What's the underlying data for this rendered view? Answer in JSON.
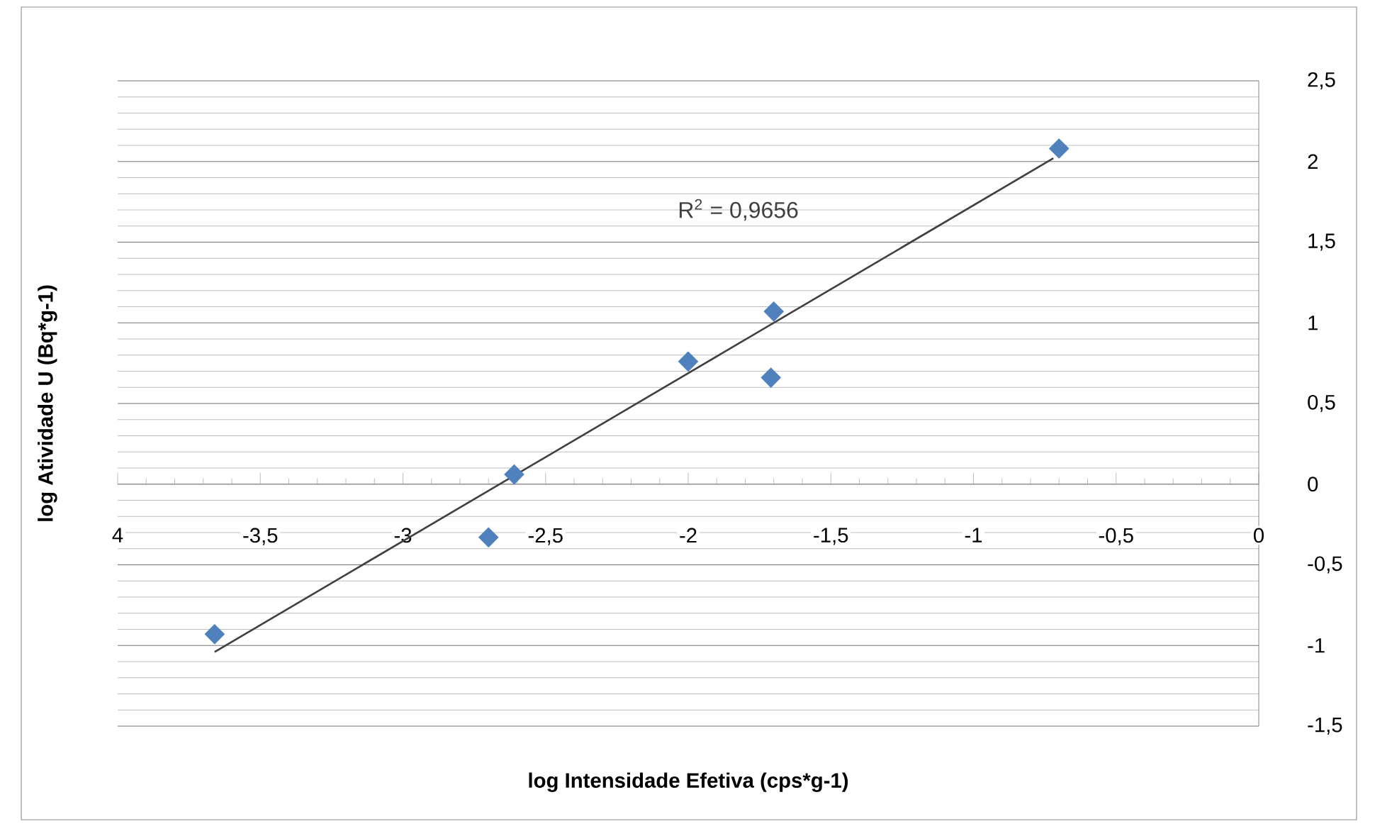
{
  "chart_data": {
    "type": "scatter",
    "xlabel": "log Intensidade Efetiva (cps*g-1)",
    "ylabel": "log Atividade U (Bq*g-1)",
    "series": [
      {
        "color": "#4f81bd",
        "x": [
          -3.66,
          -2.7,
          -2.61,
          -2.0,
          -1.71,
          -1.7,
          -0.7
        ],
        "values": [
          -0.93,
          -0.33,
          0.06,
          0.76,
          0.66,
          1.07,
          2.08
        ]
      },
      {
        "type": "line",
        "color": "#404040",
        "marker": "none",
        "line_style": "solid",
        "x": [
          -3.66,
          -0.72
        ],
        "values": [
          -1.04,
          2.02
        ]
      }
    ],
    "annotations": [
      "R$^{2}$ = 0,9656"
    ],
    "marker": "diamond",
    "grid": "y",
    "xlim": [
      -4,
      0
    ],
    "ylim": [
      -1.5,
      2.5
    ],
    "xticks": [
      {
        "value": -4,
        "label": "4"
      },
      {
        "value": -3.5,
        "label": "-3,5"
      },
      -3,
      {
        "value": -2.5,
        "label": "-2,5"
      },
      -2,
      {
        "value": -1.5,
        "label": "-1,5"
      },
      -1,
      {
        "value": -0.5,
        "label": "-0,5"
      },
      0
    ],
    "yticks": [
      {
        "value": -1.5,
        "label": "-1,5"
      },
      -1,
      {
        "value": -0.5,
        "label": "-0,5"
      },
      0,
      {
        "value": 0.5,
        "label": "0,5"
      },
      1,
      {
        "value": 1.5,
        "label": "1,5"
      },
      2,
      {
        "value": 2.5,
        "label": "2,5"
      }
    ]
  }
}
